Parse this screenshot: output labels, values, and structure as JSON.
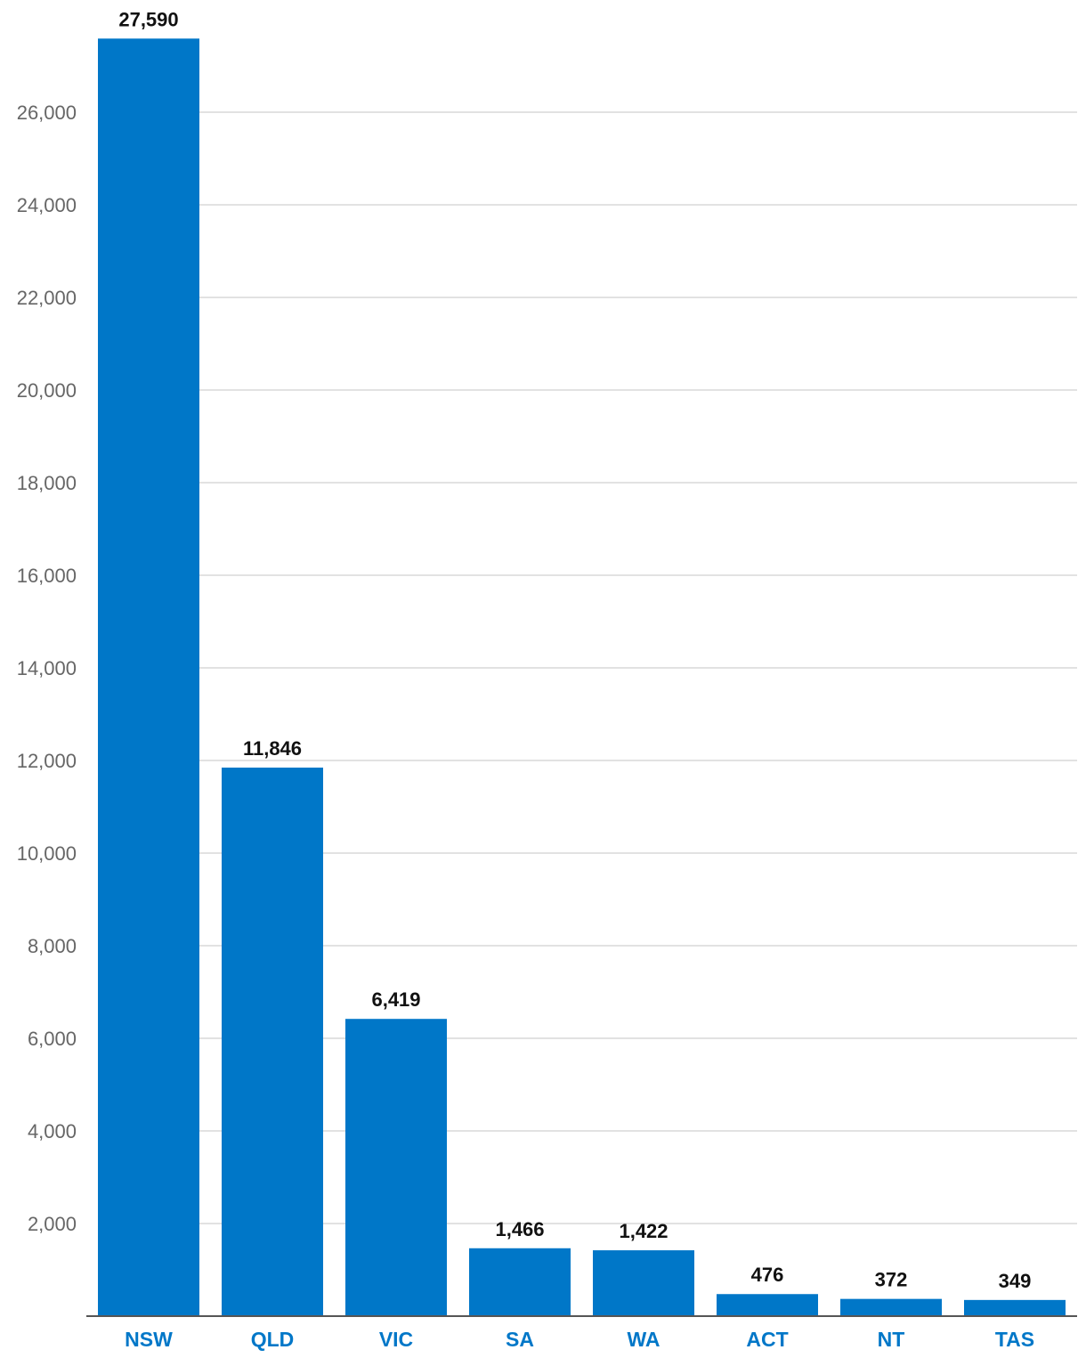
{
  "chart_data": {
    "type": "bar",
    "title": "",
    "xlabel": "",
    "ylabel": "",
    "categories": [
      "NSW",
      "QLD",
      "VIC",
      "SA",
      "WA",
      "ACT",
      "NT",
      "TAS"
    ],
    "values": [
      27590,
      11846,
      6419,
      1466,
      1422,
      476,
      372,
      349
    ],
    "value_labels": [
      "27,590",
      "11,846",
      "6,419",
      "1,466",
      "1,422",
      "476",
      "372",
      "349"
    ],
    "ylim": [
      0,
      27590
    ],
    "yticks": [
      2000,
      4000,
      6000,
      8000,
      10000,
      12000,
      14000,
      16000,
      18000,
      20000,
      22000,
      24000,
      26000
    ],
    "ytick_labels": [
      "2,000",
      "4,000",
      "6,000",
      "8,000",
      "10,000",
      "12,000",
      "14,000",
      "16,000",
      "18,000",
      "20,000",
      "22,000",
      "24,000",
      "26,000"
    ],
    "grid": true,
    "legend": "none",
    "colors": {
      "bar": "#0077c8",
      "category_label": "#0077c8",
      "data_label": "#111111",
      "tick_label": "#666666",
      "grid": "#d9d9d9"
    }
  }
}
